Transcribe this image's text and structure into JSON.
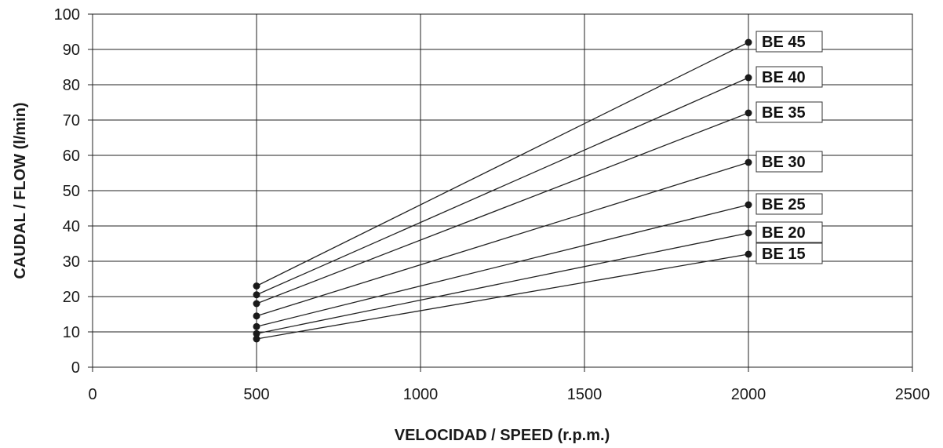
{
  "chart_data": {
    "type": "line",
    "xlabel": "VELOCIDAD / SPEED (r.p.m.)",
    "ylabel": "CAUDAL / FLOW (l/min)",
    "xlim": [
      0,
      2500
    ],
    "ylim": [
      0,
      100
    ],
    "x_ticks": [
      0,
      500,
      1000,
      1500,
      2000,
      2500
    ],
    "y_ticks": [
      0,
      10,
      20,
      30,
      40,
      50,
      60,
      70,
      80,
      90,
      100
    ],
    "grid": true,
    "series": [
      {
        "name": "BE 45",
        "x": [
          500,
          2000
        ],
        "y": [
          23,
          92
        ]
      },
      {
        "name": "BE 40",
        "x": [
          500,
          2000
        ],
        "y": [
          20.5,
          82
        ]
      },
      {
        "name": "BE 35",
        "x": [
          500,
          2000
        ],
        "y": [
          18,
          72
        ]
      },
      {
        "name": "BE 30",
        "x": [
          500,
          2000
        ],
        "y": [
          14.5,
          58
        ]
      },
      {
        "name": "BE 25",
        "x": [
          500,
          2000
        ],
        "y": [
          11.5,
          46
        ]
      },
      {
        "name": "BE 20",
        "x": [
          500,
          2000
        ],
        "y": [
          9.5,
          38
        ]
      },
      {
        "name": "BE 15",
        "x": [
          500,
          2000
        ],
        "y": [
          8,
          32
        ]
      }
    ],
    "line_color": "#222222",
    "label_style": "boxed labels at right end of each line"
  }
}
